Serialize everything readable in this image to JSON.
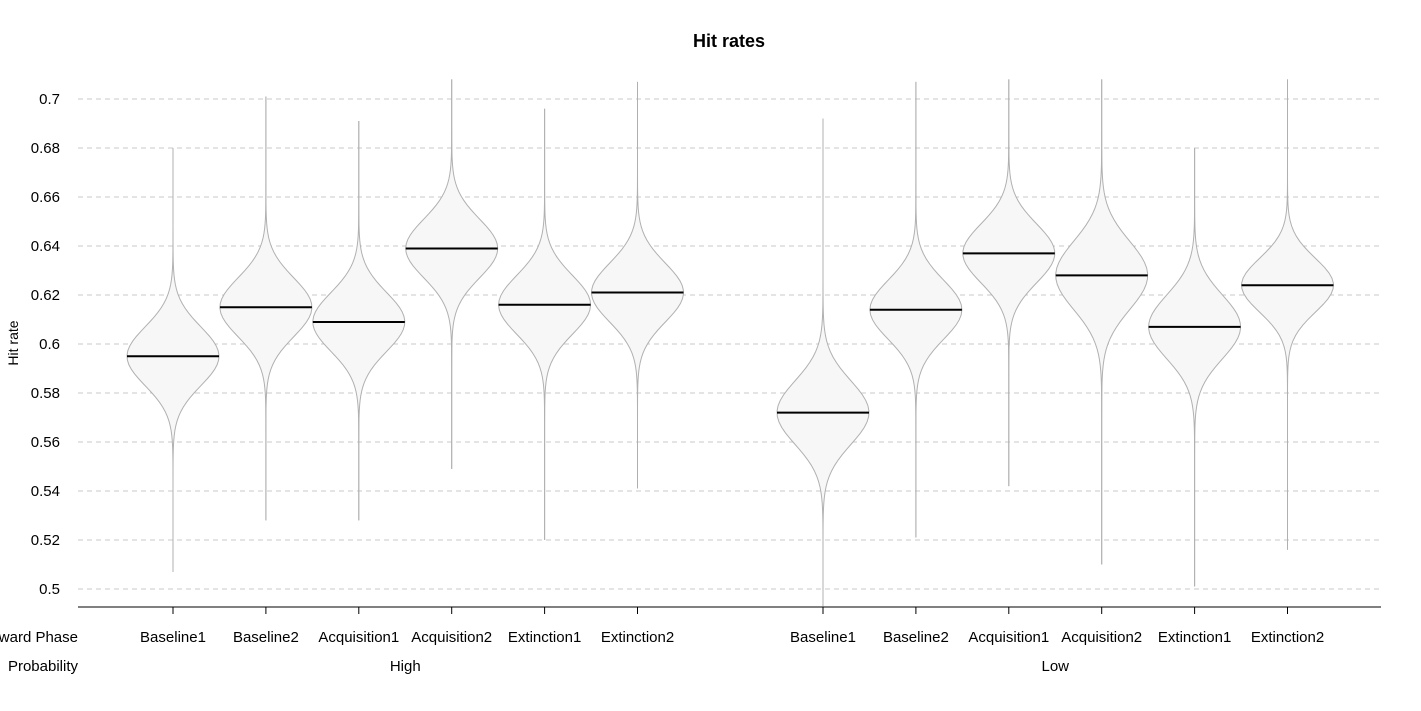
{
  "chart_data": {
    "type": "violin",
    "title": "Hit rates",
    "ylabel": "Hit rate",
    "ylim": [
      0.5,
      0.7
    ],
    "yticks": [
      0.5,
      0.52,
      0.54,
      0.56,
      0.58,
      0.6,
      0.62,
      0.64,
      0.66,
      0.68,
      0.7
    ],
    "ytick_labels": [
      "0.5",
      "0.52",
      "0.54",
      "0.56",
      "0.58",
      "0.6",
      "0.62",
      "0.64",
      "0.66",
      "0.68",
      "0.7"
    ],
    "grid": true,
    "factor_labels": [
      "Reward Phase",
      "Probability"
    ],
    "groups": [
      {
        "label": "High",
        "categories": [
          "Baseline1",
          "Baseline2",
          "Acquisition1",
          "Acquisition2",
          "Extinction1",
          "Extinction2"
        ],
        "means": [
          0.595,
          0.615,
          0.609,
          0.639,
          0.616,
          0.621
        ],
        "mins": [
          0.507,
          0.528,
          0.528,
          0.549,
          0.52,
          0.541
        ],
        "maxs": [
          0.68,
          0.701,
          0.691,
          0.708,
          0.696,
          0.707
        ],
        "widths": [
          0.012,
          0.012,
          0.012,
          0.012,
          0.012,
          0.012
        ]
      },
      {
        "label": "Low",
        "categories": [
          "Baseline1",
          "Baseline2",
          "Acquisition1",
          "Acquisition2",
          "Extinction1",
          "Extinction2"
        ],
        "means": [
          0.572,
          0.614,
          0.637,
          0.628,
          0.607,
          0.624
        ],
        "mins": [
          0.493,
          0.521,
          0.542,
          0.51,
          0.501,
          0.516
        ],
        "maxs": [
          0.692,
          0.707,
          0.708,
          0.708,
          0.68,
          0.708
        ],
        "widths": [
          0.013,
          0.012,
          0.012,
          0.014,
          0.013,
          0.011
        ]
      }
    ]
  }
}
